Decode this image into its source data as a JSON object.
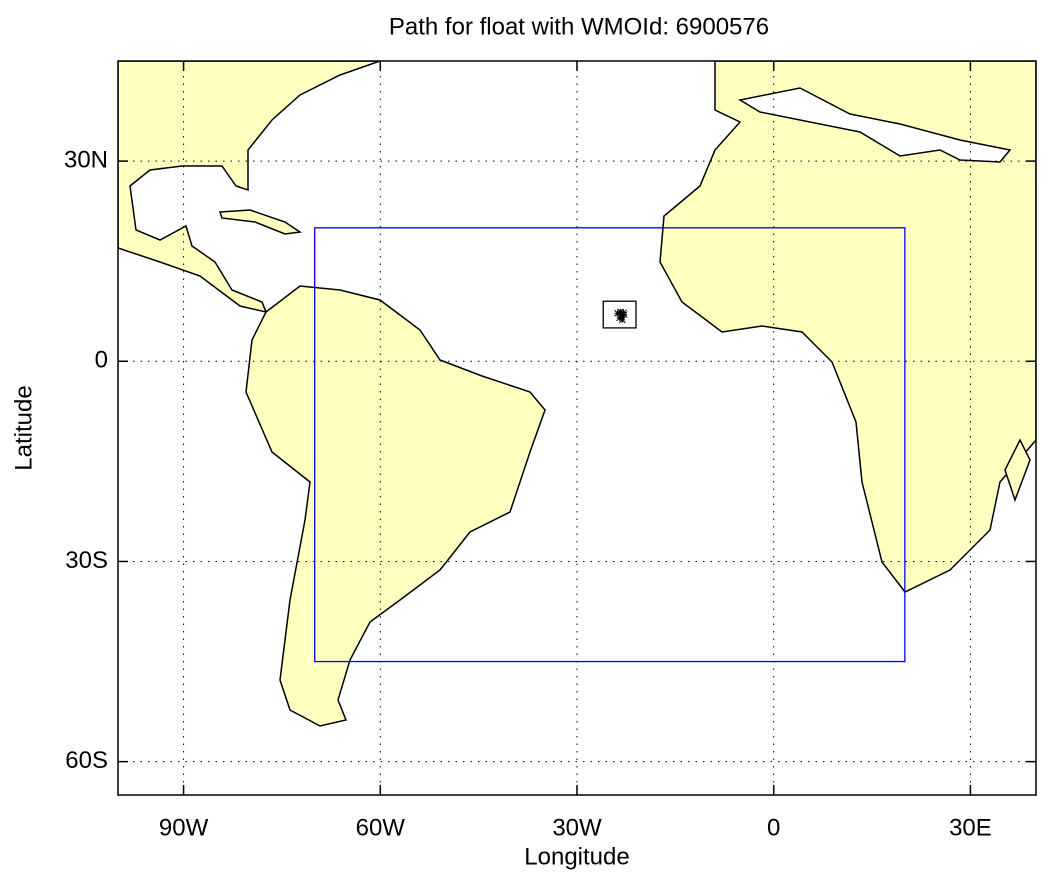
{
  "chart_data": {
    "type": "map",
    "title": "Path for float with WMOId: 6900576",
    "xlabel": "Longitude",
    "ylabel": "Latitude",
    "xlim": [
      -100,
      40
    ],
    "ylim": [
      -65,
      45
    ],
    "xticks": [
      {
        "value": -90,
        "label": "90W"
      },
      {
        "value": -60,
        "label": "60W"
      },
      {
        "value": -30,
        "label": "30W"
      },
      0,
      {
        "value": 30,
        "label": "30E"
      }
    ],
    "yticks": [
      {
        "value": -60,
        "label": "60S"
      },
      {
        "value": -30,
        "label": "30S"
      },
      0,
      {
        "value": 30,
        "label": "30N"
      }
    ],
    "grid": true,
    "land_color": "#ffffc0",
    "boxes": [
      {
        "lon": [
          -70,
          20
        ],
        "lat": [
          -45,
          20
        ],
        "color": "#0000ff"
      },
      {
        "lon": [
          -26,
          -21
        ],
        "lat": [
          5,
          9
        ],
        "color": "#000000"
      }
    ],
    "series": [
      {
        "color": "#000000",
        "x": [
          -23.8,
          -23.2,
          -22.9,
          -23.5,
          -23.1,
          -22.8,
          -23.4
        ],
        "y": [
          7.2,
          6.9,
          7.3,
          6.5,
          6.2,
          7.0,
          7.4
        ]
      }
    ]
  }
}
